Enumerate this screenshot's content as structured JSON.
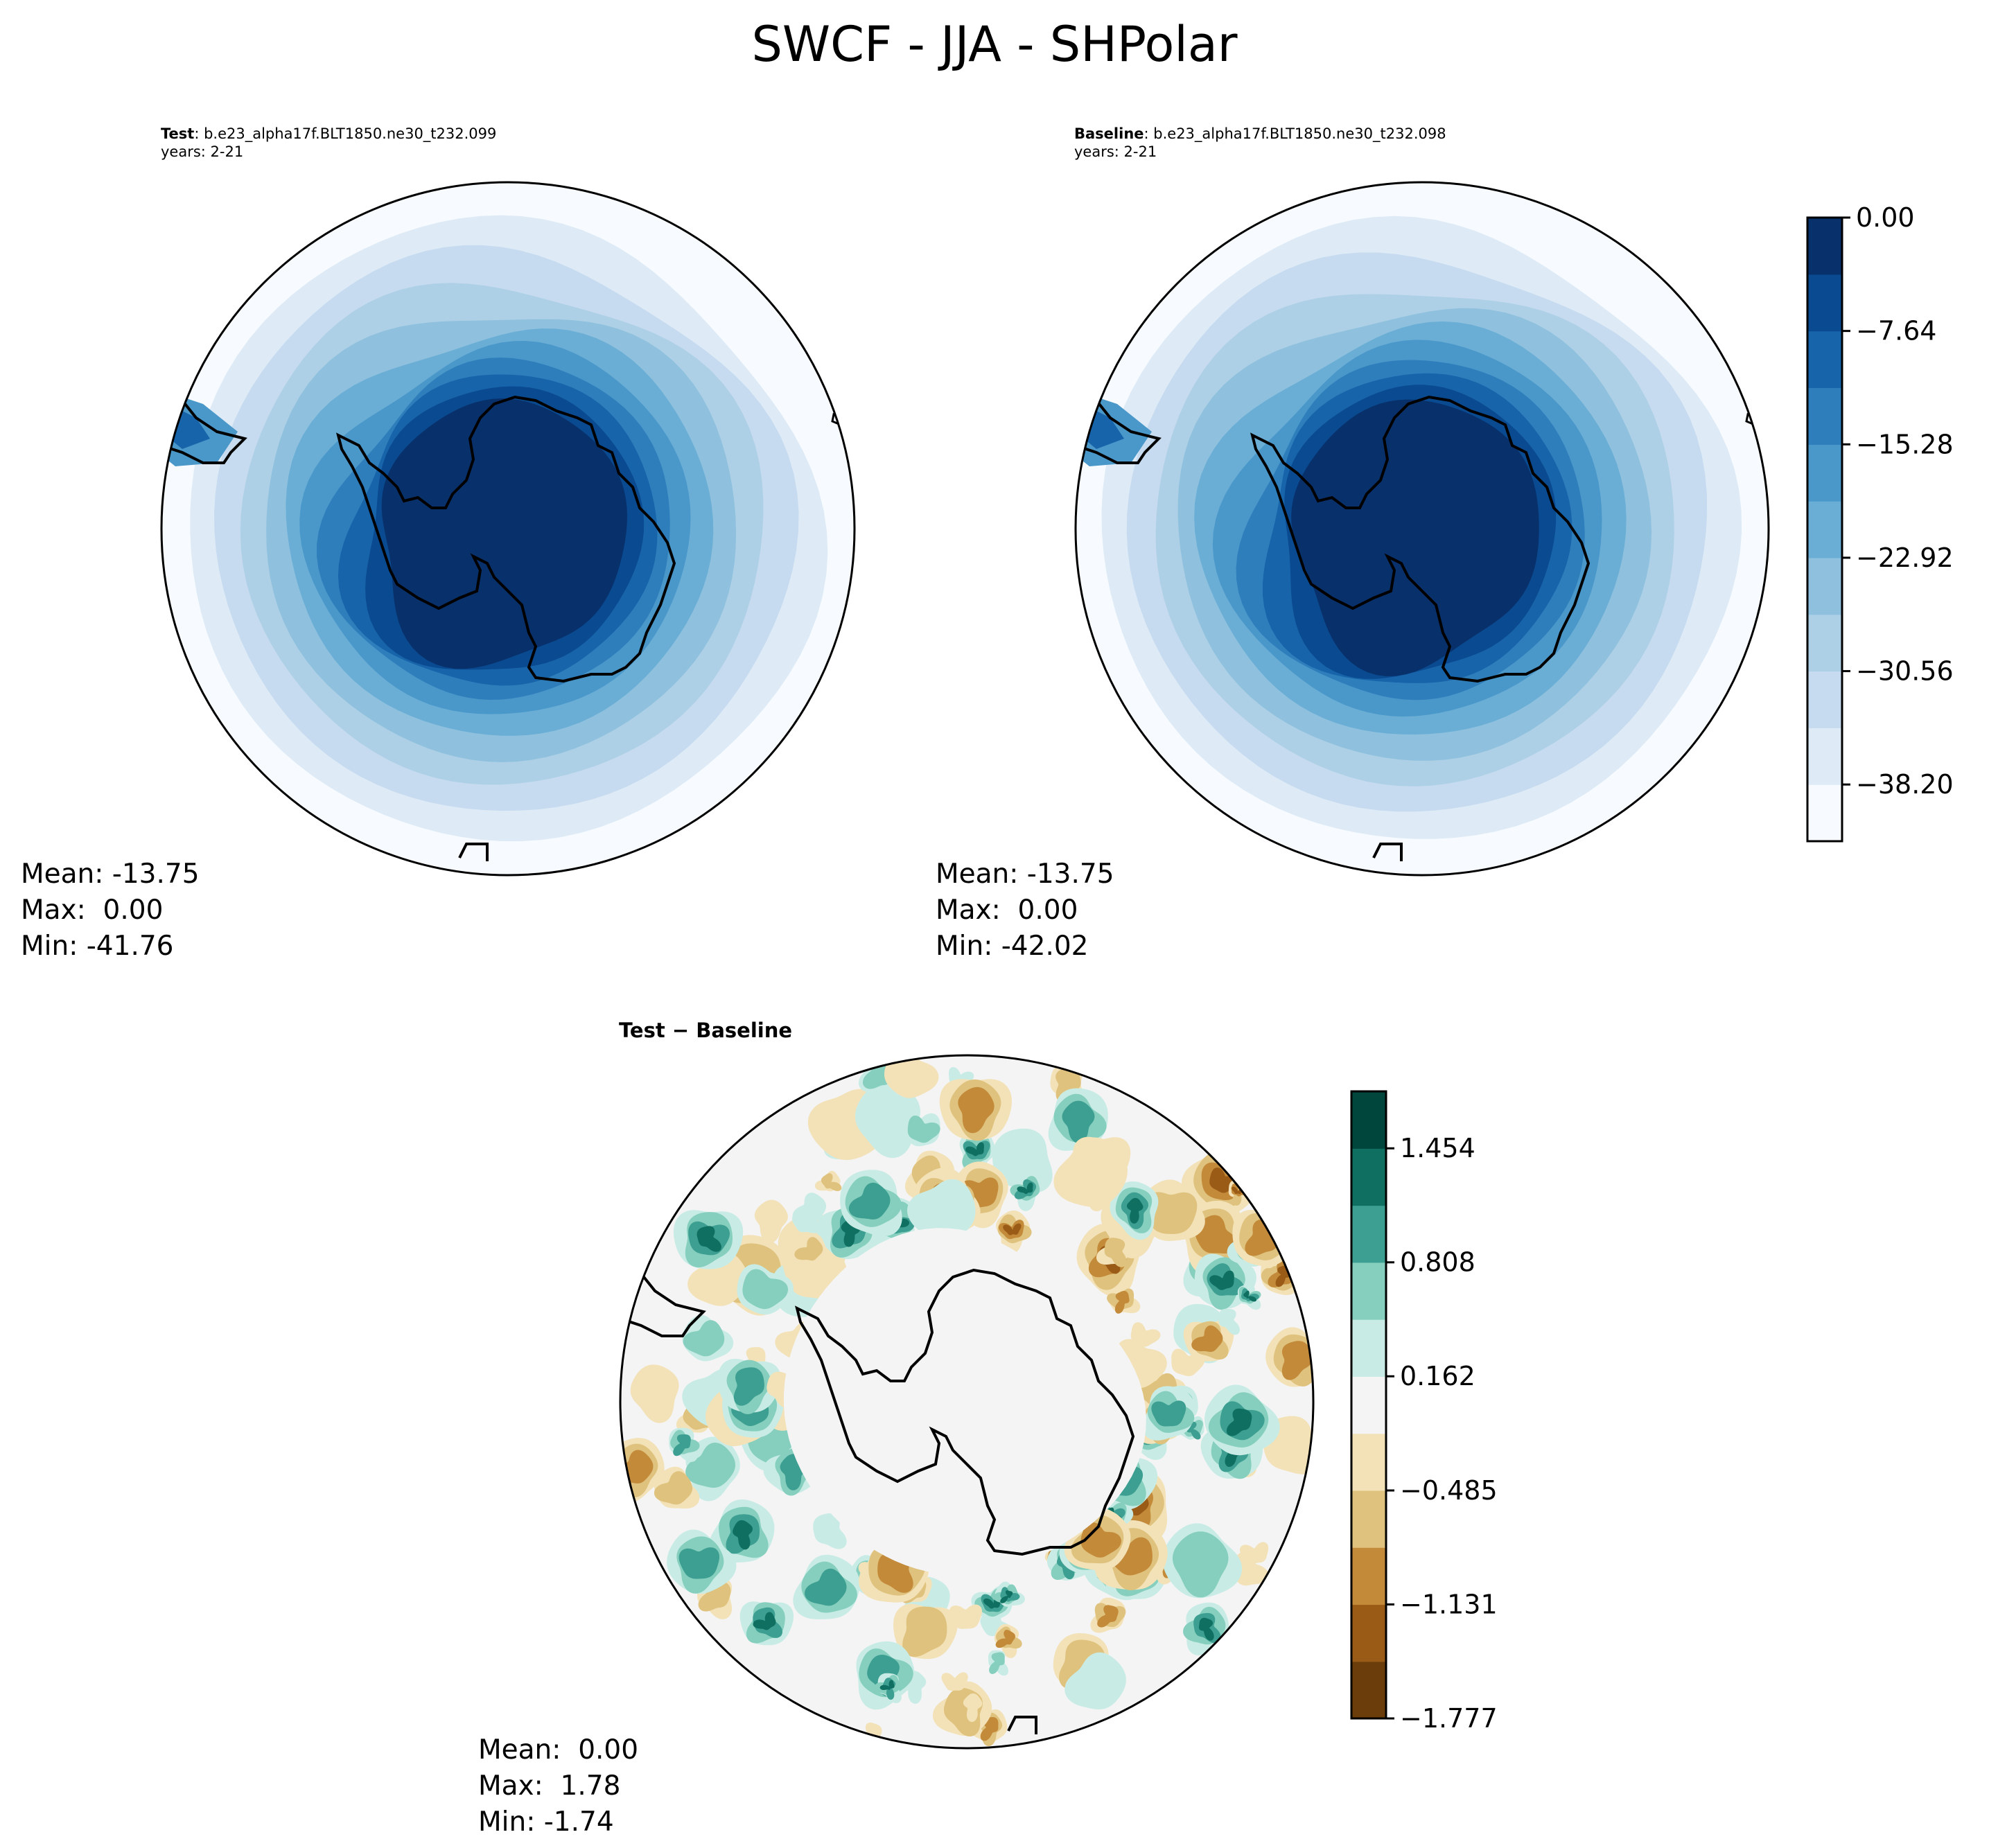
{
  "figure": {
    "title": "SWCF - JJA - SHPolar"
  },
  "panels": {
    "test": {
      "label_bold": "Test",
      "label_rest": ": b.e23_alpha17f.BLT1850.ne30_t232.099",
      "years": "years: 2-21",
      "mean": "Mean: -13.75",
      "max": "Max:  0.00",
      "min": "Min: -41.76"
    },
    "baseline": {
      "label_bold": "Baseline",
      "label_rest": ": b.e23_alpha17f.BLT1850.ne30_t232.098",
      "years": "years: 2-21",
      "mean": "Mean: -13.75",
      "max": "Max:  0.00",
      "min": "Min: -42.02"
    },
    "diff": {
      "title": "Test − Baseline",
      "mean": "Mean:  0.00",
      "max": "Max:  1.78",
      "min": "Min: -1.74"
    }
  },
  "colorbars": {
    "main": {
      "ticks": [
        "0.00",
        "−7.64",
        "−15.28",
        "−22.92",
        "−30.56",
        "−38.20"
      ],
      "tick_values": [
        0,
        -7.64,
        -15.28,
        -22.92,
        -30.56,
        -38.2
      ],
      "range": [
        -42.02,
        0
      ],
      "colors": [
        "#f7fbff",
        "#deebf7",
        "#c6dbef",
        "#add0e6",
        "#8fc1de",
        "#6aaed6",
        "#4a97c9",
        "#2f7ebc",
        "#1864aa",
        "#0a4a90",
        "#08306b"
      ]
    },
    "diff": {
      "ticks": [
        "1.454",
        "0.808",
        "0.162",
        "−0.485",
        "−1.131",
        "−1.777"
      ],
      "tick_values": [
        1.454,
        0.808,
        0.162,
        -0.485,
        -1.131,
        -1.777
      ],
      "range": [
        -1.777,
        1.777
      ],
      "colors": [
        "#6b3d0a",
        "#9a5b16",
        "#c38a3a",
        "#dfc27d",
        "#f3e2b8",
        "#f4f4f4",
        "#c8ece5",
        "#86cfbe",
        "#3d9f91",
        "#0f6f61",
        "#01463c"
      ]
    }
  }
}
